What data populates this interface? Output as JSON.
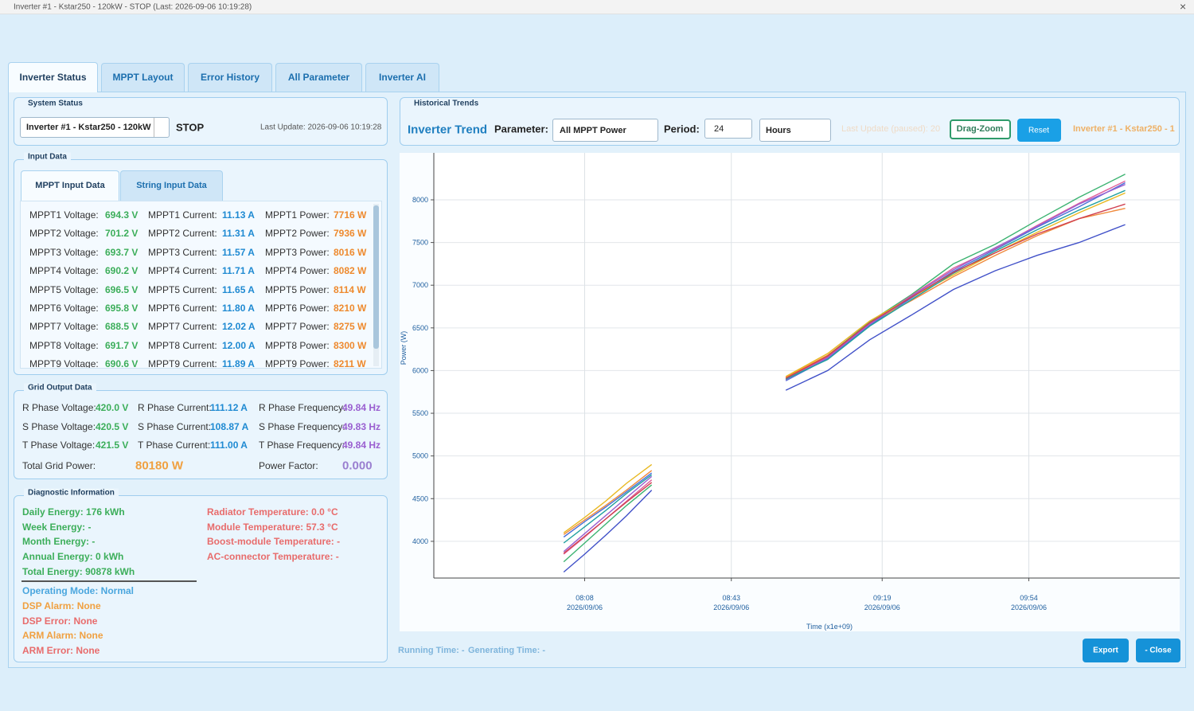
{
  "window": {
    "title": "Inverter #1 - Kstar250 - 120kW - STOP (Last: 2026-09-06 10:19:28)",
    "close": "×"
  },
  "tabs": [
    "Inverter Status",
    "MPPT Layout",
    "Error History",
    "All Parameter",
    "Inverter AI"
  ],
  "system_status": {
    "legend": "System Status",
    "inverter": "Inverter #1 - Kstar250 - 120kW",
    "state": "STOP",
    "last_update": "Last Update: 2026-09-06 10:19:28"
  },
  "input_data": {
    "legend": "Input Data",
    "tabs": [
      "MPPT Input Data",
      "String Input Data"
    ],
    "rows": [
      [
        "MPPT1 Voltage:",
        "694.3 V",
        "MPPT1 Current:",
        "11.13 A",
        "MPPT1 Power:",
        "7716 W"
      ],
      [
        "MPPT2 Voltage:",
        "701.2 V",
        "MPPT2 Current:",
        "11.31 A",
        "MPPT2 Power:",
        "7936 W"
      ],
      [
        "MPPT3 Voltage:",
        "693.7 V",
        "MPPT3 Current:",
        "11.57 A",
        "MPPT3 Power:",
        "8016 W"
      ],
      [
        "MPPT4 Voltage:",
        "690.2 V",
        "MPPT4 Current:",
        "11.71 A",
        "MPPT4 Power:",
        "8082 W"
      ],
      [
        "MPPT5 Voltage:",
        "696.5 V",
        "MPPT5 Current:",
        "11.65 A",
        "MPPT5 Power:",
        "8114 W"
      ],
      [
        "MPPT6 Voltage:",
        "695.8 V",
        "MPPT6 Current:",
        "11.80 A",
        "MPPT6 Power:",
        "8210 W"
      ],
      [
        "MPPT7 Voltage:",
        "688.5 V",
        "MPPT7 Current:",
        "12.02 A",
        "MPPT7 Power:",
        "8275 W"
      ],
      [
        "MPPT8 Voltage:",
        "691.7 V",
        "MPPT8 Current:",
        "12.00 A",
        "MPPT8 Power:",
        "8300 W"
      ],
      [
        "MPPT9 Voltage:",
        "690.6 V",
        "MPPT9 Current:",
        "11.89 A",
        "MPPT9 Power:",
        "8211 W"
      ]
    ]
  },
  "grid_output": {
    "legend": "Grid Output Data",
    "rows": [
      [
        "R Phase Voltage:",
        "420.0 V",
        "R Phase Current:",
        "111.12 A",
        "R Phase Frequency:",
        "49.84 Hz"
      ],
      [
        "S Phase Voltage:",
        "420.5 V",
        "S Phase Current:",
        "108.87 A",
        "S Phase Frequency:",
        "49.83 Hz"
      ],
      [
        "T Phase Voltage:",
        "421.5 V",
        "T Phase Current:",
        "111.00 A",
        "T Phase Frequency:",
        "49.84 Hz"
      ]
    ],
    "total_label": "Total Grid Power:",
    "total_value": "80180 W",
    "pf_label": "Power Factor:",
    "pf_value": "0.000"
  },
  "diagnostic": {
    "legend": "Diagnostic Information",
    "energy": [
      "Daily Energy: 176 kWh",
      "Week Energy: -",
      "Month Energy: -",
      "Annual Energy: 0 kWh",
      "Total Energy: 90878 kWh"
    ],
    "temperatures": [
      "Radiator Temperature: 0.0 °C",
      "Module Temperature: 57.3 °C",
      "Boost-module Temperature: -",
      "AC-connector Temperature: -"
    ],
    "status": [
      "Operating Mode: Normal",
      "DSP Alarm: None",
      "DSP Error: None",
      "ARM Alarm: None",
      "ARM Error: None"
    ]
  },
  "trends": {
    "legend": "Historical Trends",
    "title": "Inverter Trend",
    "parameter_label": "Parameter:",
    "parameter": "All MPPT Power",
    "period_label": "Period:",
    "period": "24",
    "unit": "Hours",
    "paused": "Last Update (paused): 20",
    "drag_zoom": "Drag-Zoom",
    "reset": "Reset",
    "inverter": "Inverter #1 - Kstar250 - 1"
  },
  "chart_data": {
    "type": "line",
    "ylabel": "Power (W)",
    "xlabel": "Time (x1e+09)",
    "xlim": [
      452,
      630
    ],
    "ylim": [
      3570,
      8550
    ],
    "xticks": [
      {
        "value": 488,
        "label": "08:08",
        "date": "2026/09/06"
      },
      {
        "value": 523,
        "label": "08:43",
        "date": "2026/09/06"
      },
      {
        "value": 559,
        "label": "09:19",
        "date": "2026/09/06"
      },
      {
        "value": 594,
        "label": "09:54",
        "date": "2026/09/06"
      }
    ],
    "yticks": [
      4000,
      4500,
      5000,
      5500,
      6000,
      6500,
      7000,
      7500,
      8000
    ],
    "grid": true,
    "x": [
      483,
      488,
      493,
      498,
      504,
      null,
      536,
      546,
      556,
      566,
      576,
      586,
      596,
      606,
      617
    ],
    "series": [
      {
        "color": "#4a6fd8",
        "values": [
          4050,
          4230,
          4400,
          4580,
          4800,
          null,
          5880,
          6140,
          6530,
          6850,
          7160,
          7420,
          7680,
          7920,
          8200
        ]
      },
      {
        "color": "#f08a3c",
        "values": [
          4080,
          4250,
          4420,
          4600,
          4830,
          null,
          5920,
          6180,
          6560,
          6820,
          7100,
          7350,
          7580,
          7780,
          7900
        ]
      },
      {
        "color": "#3cb371",
        "values": [
          3760,
          3980,
          4200,
          4420,
          4660,
          null,
          5900,
          6170,
          6570,
          6890,
          7250,
          7480,
          7760,
          8030,
          8300
        ]
      },
      {
        "color": "#e0609a",
        "values": [
          3850,
          4050,
          4260,
          4470,
          4720,
          null,
          5910,
          6160,
          6550,
          6880,
          7200,
          7430,
          7700,
          7960,
          8220
        ]
      },
      {
        "color": "#e8b820",
        "values": [
          4100,
          4280,
          4470,
          4680,
          4900,
          null,
          5930,
          6200,
          6580,
          6860,
          7120,
          7380,
          7620,
          7850,
          8080
        ]
      },
      {
        "color": "#9a5fd0",
        "values": [
          3880,
          4090,
          4300,
          4510,
          4760,
          null,
          5890,
          6150,
          6540,
          6870,
          7180,
          7440,
          7690,
          7950,
          8180
        ]
      },
      {
        "color": "#20a0a0",
        "values": [
          3980,
          4170,
          4360,
          4560,
          4780,
          null,
          5900,
          6130,
          6520,
          6830,
          7140,
          7400,
          7650,
          7880,
          8110
        ]
      },
      {
        "color": "#4050c8",
        "values": [
          3640,
          3850,
          4070,
          4300,
          4600,
          null,
          5770,
          6000,
          6360,
          6650,
          6950,
          7170,
          7350,
          7500,
          7710
        ]
      },
      {
        "color": "#d04050",
        "values": [
          3860,
          4060,
          4260,
          4460,
          4690,
          null,
          5910,
          6170,
          6560,
          6860,
          7150,
          7380,
          7600,
          7780,
          7950
        ]
      }
    ]
  },
  "footer": {
    "running": "Running Time: -",
    "generating": "Generating Time: -",
    "export": "Export",
    "close": "- Close"
  }
}
